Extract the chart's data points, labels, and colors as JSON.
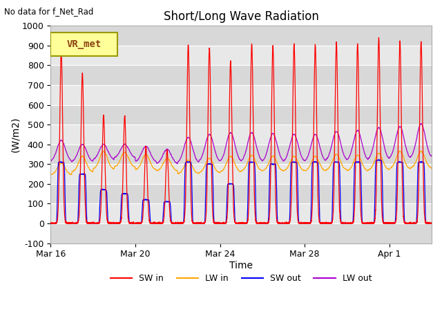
{
  "title": "Short/Long Wave Radiation",
  "top_left_text": "No data for f_Net_Rad",
  "legend_box_label": "VR_met",
  "xlabel": "Time",
  "ylabel": "(W/m2)",
  "ylim": [
    -100,
    1000
  ],
  "yticks": [
    -100,
    0,
    100,
    200,
    300,
    400,
    500,
    600,
    700,
    800,
    900,
    1000
  ],
  "xtick_labels": [
    "Mar 16",
    "Mar 20",
    "Mar 24",
    "Mar 28",
    "Apr 1"
  ],
  "xtick_positions": [
    0,
    4,
    8,
    12,
    16
  ],
  "series": {
    "SW_in": {
      "color": "#ff0000",
      "label": "SW in"
    },
    "LW_in": {
      "color": "#ffa500",
      "label": "LW in"
    },
    "SW_out": {
      "color": "#0000ff",
      "label": "SW out"
    },
    "LW_out": {
      "color": "#aa00cc",
      "label": "LW out"
    }
  },
  "background_color": "#ffffff",
  "plot_bg_color": "#e8e8e8",
  "band_color_light": "#f0f0f0",
  "band_color_dark": "#d8d8d8",
  "days": 18,
  "points_per_day": 288,
  "legend_box_color": "#ffff99",
  "legend_box_border": "#999900"
}
